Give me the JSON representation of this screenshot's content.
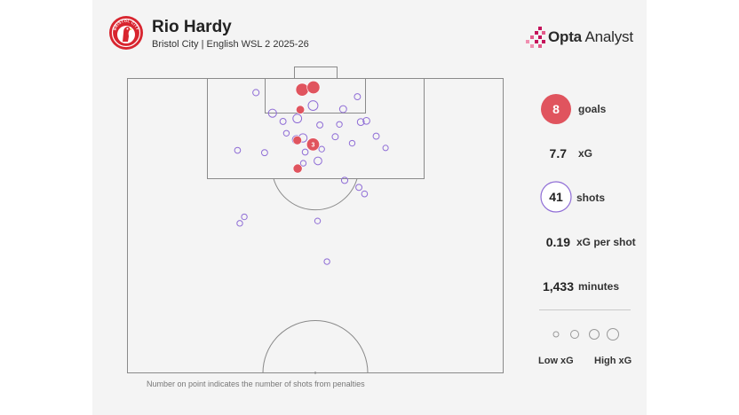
{
  "header": {
    "player_name": "Rio Hardy",
    "subtitle": "Bristol City | English WSL 2 2025-26",
    "brand": {
      "strong": "Opta",
      "light": "Analyst"
    },
    "crest_icon": "bristol-city-crest-icon",
    "crest_text": "BRISTOL CITY"
  },
  "stats": {
    "goals": {
      "value": "8",
      "label": "goals"
    },
    "xg": {
      "value": "7.7",
      "label": "xG"
    },
    "shots": {
      "value": "41",
      "label": "shots"
    },
    "xg_per_shot": {
      "value": "0.19",
      "label": "xG per shot"
    },
    "minutes": {
      "value": "1,433",
      "label": "minutes"
    }
  },
  "legend": {
    "low": "Low xG",
    "high": "High xG"
  },
  "footnote": "Number on point indicates the number of shots from penalties",
  "colors": {
    "goal_fill": "#e0545e",
    "shot_stroke": "#8f6dd6",
    "pitch_line": "#8a8a8a",
    "accent": "#c4135a"
  },
  "chart_data": {
    "type": "scatter",
    "x_axis": "pitch width (0 = left touchline, 100 = right touchline)",
    "y_axis": "distance from attacking goal line (0-50, half pitch)",
    "xlim": [
      0,
      100
    ],
    "ylim": [
      0,
      50
    ],
    "series": [
      {
        "name": "goals",
        "points": [
          {
            "x": 46.5,
            "y": 1.9,
            "xg": 0.75
          },
          {
            "x": 49.5,
            "y": 1.5,
            "xg": 0.75
          },
          {
            "x": 46.0,
            "y": 5.3,
            "xg": 0.22
          },
          {
            "x": 45.2,
            "y": 10.5,
            "xg": 0.25
          },
          {
            "x": 49.4,
            "y": 11.2,
            "xg": 0.76,
            "label": "3"
          },
          {
            "x": 45.3,
            "y": 15.3,
            "xg": 0.28
          }
        ]
      },
      {
        "name": "shots",
        "points": [
          {
            "x": 34.2,
            "y": 2.4,
            "xg": 0.08
          },
          {
            "x": 61.2,
            "y": 3.1,
            "xg": 0.07
          },
          {
            "x": 49.4,
            "y": 4.6,
            "xg": 0.35
          },
          {
            "x": 57.4,
            "y": 5.2,
            "xg": 0.12
          },
          {
            "x": 38.6,
            "y": 5.9,
            "xg": 0.2
          },
          {
            "x": 45.2,
            "y": 6.8,
            "xg": 0.25
          },
          {
            "x": 41.4,
            "y": 7.3,
            "xg": 0.07
          },
          {
            "x": 62.1,
            "y": 7.4,
            "xg": 0.11
          },
          {
            "x": 63.6,
            "y": 7.2,
            "xg": 0.11
          },
          {
            "x": 51.2,
            "y": 7.9,
            "xg": 0.07
          },
          {
            "x": 56.4,
            "y": 7.8,
            "xg": 0.05
          },
          {
            "x": 42.3,
            "y": 9.3,
            "xg": 0.05
          },
          {
            "x": 46.7,
            "y": 10.1,
            "xg": 0.22
          },
          {
            "x": 55.3,
            "y": 9.9,
            "xg": 0.07
          },
          {
            "x": 66.2,
            "y": 9.8,
            "xg": 0.07
          },
          {
            "x": 45.0,
            "y": 10.4,
            "xg": 0.22
          },
          {
            "x": 59.8,
            "y": 11.0,
            "xg": 0.05
          },
          {
            "x": 68.7,
            "y": 11.8,
            "xg": 0.04
          },
          {
            "x": 29.3,
            "y": 12.2,
            "xg": 0.06
          },
          {
            "x": 36.5,
            "y": 12.6,
            "xg": 0.07
          },
          {
            "x": 47.3,
            "y": 12.5,
            "xg": 0.06
          },
          {
            "x": 51.7,
            "y": 12.0,
            "xg": 0.05
          },
          {
            "x": 50.7,
            "y": 14.0,
            "xg": 0.17
          },
          {
            "x": 46.8,
            "y": 14.4,
            "xg": 0.05
          },
          {
            "x": 57.8,
            "y": 17.3,
            "xg": 0.08
          },
          {
            "x": 61.6,
            "y": 18.5,
            "xg": 0.07
          },
          {
            "x": 63.1,
            "y": 19.6,
            "xg": 0.06
          },
          {
            "x": 31.1,
            "y": 23.5,
            "xg": 0.05
          },
          {
            "x": 29.9,
            "y": 24.6,
            "xg": 0.05
          },
          {
            "x": 50.6,
            "y": 24.2,
            "xg": 0.05
          },
          {
            "x": 53.1,
            "y": 31.1,
            "xg": 0.05
          }
        ]
      }
    ]
  }
}
